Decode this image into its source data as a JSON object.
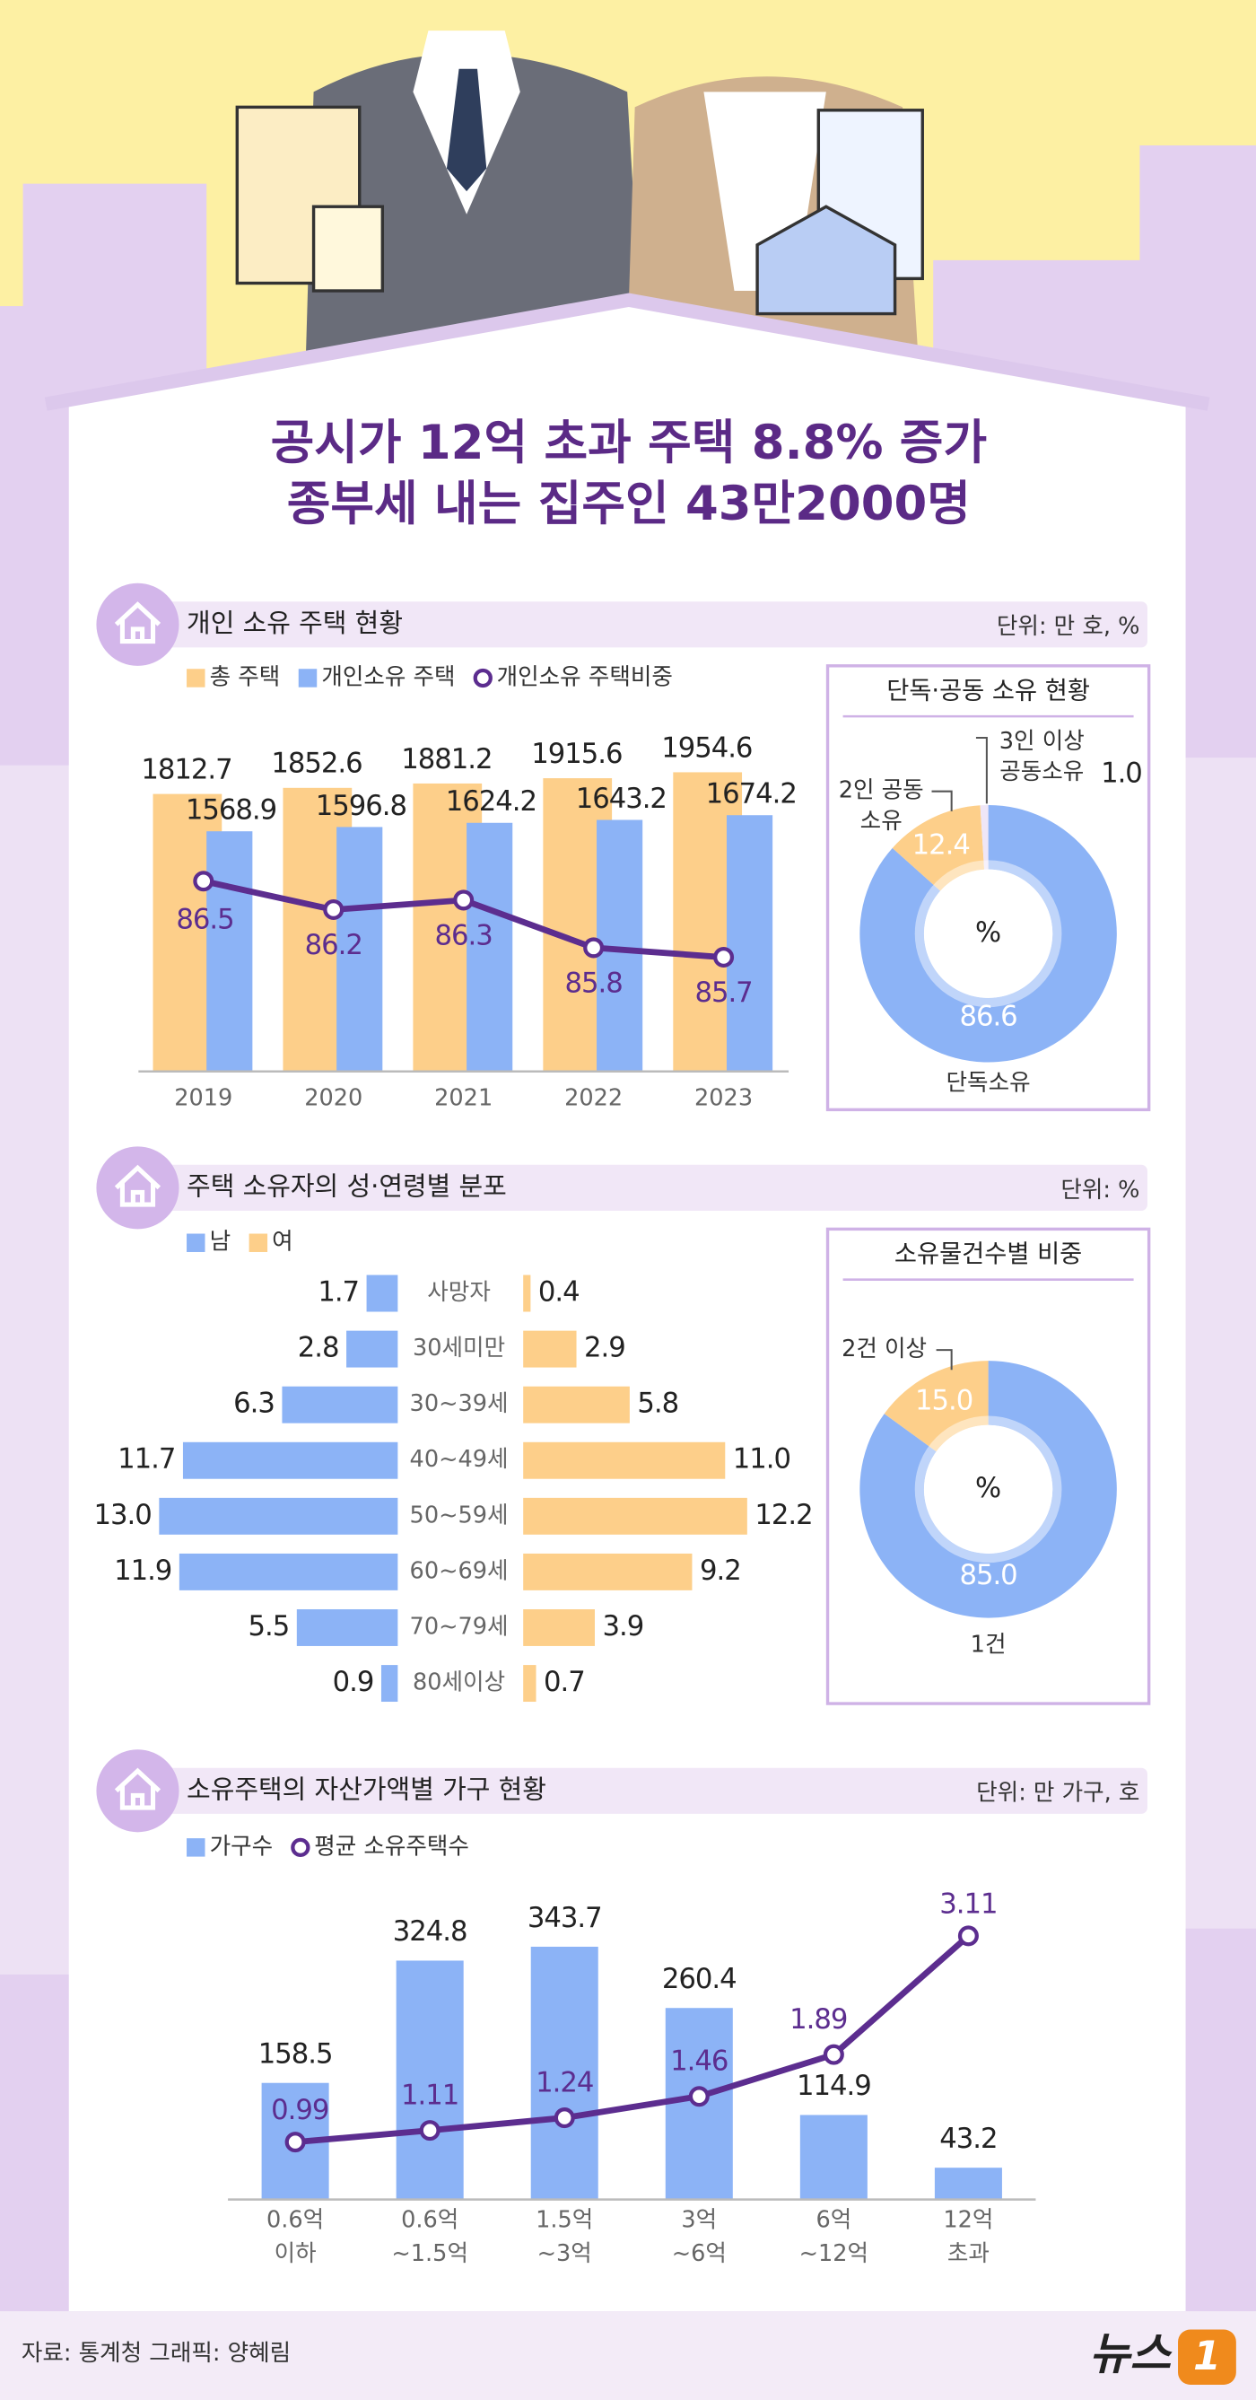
{
  "headline": [
    "공시가 12억 초과 주택 8.8% 증가",
    "종부세 내는 집주인 43만2000명"
  ],
  "chart_data": [
    {
      "type": "bar",
      "title": "개인 소유 주택 현황",
      "unit": "단위: 만 호, %",
      "categories": [
        "2019",
        "2020",
        "2021",
        "2022",
        "2023"
      ],
      "series": [
        {
          "name": "총 주택",
          "color": "#fdcf8a",
          "values": [
            1812.7,
            1852.6,
            1881.2,
            1915.6,
            1954.6
          ]
        },
        {
          "name": "개인소유 주택",
          "color": "#8cb3f6",
          "values": [
            1568.9,
            1596.8,
            1624.2,
            1643.2,
            1674.2
          ]
        },
        {
          "name": "개인소유 주택비중",
          "color": "#5c2d8f",
          "type": "line",
          "axis": "y2",
          "values": [
            86.5,
            86.2,
            86.3,
            85.8,
            85.7
          ]
        }
      ],
      "ylim": [
        0,
        2300
      ],
      "y2lim": [
        84.5,
        88.2
      ]
    },
    {
      "type": "donut",
      "title": "단독·공동 소유 현황",
      "center_label": "%",
      "categories": [
        [
          "단독소유"
        ],
        [
          "2인 공동",
          "소유"
        ],
        [
          "3인 이상",
          "공동소유"
        ]
      ],
      "values": [
        86.6,
        12.4,
        1.0
      ],
      "value_labels": [
        "86.6",
        "12.4",
        "1.0"
      ],
      "colors": [
        "#8cb3f6",
        "#fdcf8a",
        "#efe6f7"
      ]
    },
    {
      "type": "pyramid",
      "title": "주택 소유자의 성·연령별 분포",
      "unit": "단위: %",
      "categories": [
        "사망자",
        "30세미만",
        "30~39세",
        "40~49세",
        "50~59세",
        "60~69세",
        "70~79세",
        "80세이상"
      ],
      "series": [
        {
          "name": "남",
          "color": "#8cb3f6",
          "values": [
            1.7,
            2.8,
            6.3,
            11.7,
            13.0,
            11.9,
            5.5,
            0.9
          ],
          "value_labels": [
            "1.7",
            "2.8",
            "6.3",
            "11.7",
            "13.0",
            "11.9",
            "5.5",
            "0.9"
          ]
        },
        {
          "name": "여",
          "color": "#fdcf8a",
          "values": [
            0.4,
            2.9,
            5.8,
            11.0,
            12.2,
            9.2,
            3.9,
            0.7
          ],
          "value_labels": [
            "0.4",
            "2.9",
            "5.8",
            "11.0",
            "12.2",
            "9.2",
            "3.9",
            "0.7"
          ]
        }
      ],
      "xlim": [
        0,
        13.5
      ]
    },
    {
      "type": "donut",
      "title": "소유물건수별 비중",
      "center_label": "%",
      "categories": [
        [
          "1건"
        ],
        [
          "2건 이상"
        ]
      ],
      "values": [
        85.0,
        15.0
      ],
      "value_labels": [
        "85.0",
        "15.0"
      ],
      "colors": [
        "#8cb3f6",
        "#fdcf8a"
      ]
    },
    {
      "type": "bar",
      "title": "소유주택의 자산가액별 가구 현황",
      "unit": "단위: 만 가구, 호",
      "categories": [
        [
          "0.6억",
          "이하"
        ],
        [
          "0.6억",
          "~1.5억"
        ],
        [
          "1.5억",
          "~3억"
        ],
        [
          "3억",
          "~6억"
        ],
        [
          "6억",
          "~12억"
        ],
        [
          "12억",
          "초과"
        ]
      ],
      "series": [
        {
          "name": "가구수",
          "color": "#8cb3f6",
          "values": [
            158.5,
            324.8,
            343.7,
            260.4,
            114.9,
            43.2
          ]
        },
        {
          "name": "평균 소유주택수",
          "color": "#5c2d8f",
          "type": "line",
          "axis": "y2",
          "values": [
            0.99,
            1.11,
            1.24,
            1.46,
            1.89,
            3.11
          ]
        }
      ],
      "ylim": [
        0,
        410
      ],
      "y2lim": [
        0.4,
        3.5
      ]
    }
  ],
  "footer": {
    "source": "자료: 통계청  그래픽: 양혜림",
    "logo": [
      "뉴스",
      "1"
    ]
  }
}
